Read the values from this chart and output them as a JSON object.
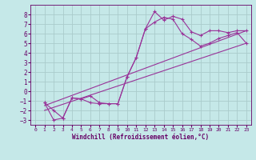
{
  "bg_color": "#c5e8e8",
  "line_color": "#993399",
  "grid_color": "#aacccc",
  "xlabel": "Windchill (Refroidissement éolien,°C)",
  "xlabel_color": "#660066",
  "tick_color": "#660066",
  "xlim": [
    -0.5,
    23.5
  ],
  "ylim": [
    -3.5,
    9.0
  ],
  "yticks": [
    -3,
    -2,
    -1,
    0,
    1,
    2,
    3,
    4,
    5,
    6,
    7,
    8
  ],
  "xticks": [
    0,
    1,
    2,
    3,
    4,
    5,
    6,
    7,
    8,
    9,
    10,
    11,
    12,
    13,
    14,
    15,
    16,
    17,
    18,
    19,
    20,
    21,
    22,
    23
  ],
  "curve1_x": [
    1,
    2,
    3,
    4,
    5,
    6,
    7,
    8,
    9,
    10,
    11,
    12,
    13,
    14,
    15,
    16,
    17,
    18,
    19,
    20,
    21,
    22,
    23
  ],
  "curve1_y": [
    -1.2,
    -3.0,
    -2.8,
    -0.7,
    -0.8,
    -0.5,
    -1.2,
    -1.3,
    -1.3,
    1.5,
    3.5,
    6.5,
    8.3,
    7.4,
    7.8,
    7.5,
    6.2,
    5.8,
    6.3,
    6.3,
    6.1,
    6.3,
    6.3
  ],
  "curve2_x": [
    1,
    2,
    3,
    4,
    5,
    6,
    7,
    8,
    9,
    10,
    11,
    12,
    13,
    14,
    15,
    16,
    17,
    18,
    19,
    20,
    21,
    22,
    23
  ],
  "curve2_y": [
    -1.2,
    -2.0,
    -2.8,
    -0.7,
    -0.8,
    -1.2,
    -1.3,
    -1.3,
    -1.3,
    1.5,
    3.5,
    6.5,
    7.2,
    7.7,
    7.5,
    6.0,
    5.4,
    4.7,
    5.0,
    5.5,
    5.8,
    6.1,
    5.0
  ],
  "line1_x": [
    1,
    23
  ],
  "line1_y": [
    -1.5,
    6.3
  ],
  "line2_x": [
    1,
    23
  ],
  "line2_y": [
    -2.0,
    5.0
  ]
}
